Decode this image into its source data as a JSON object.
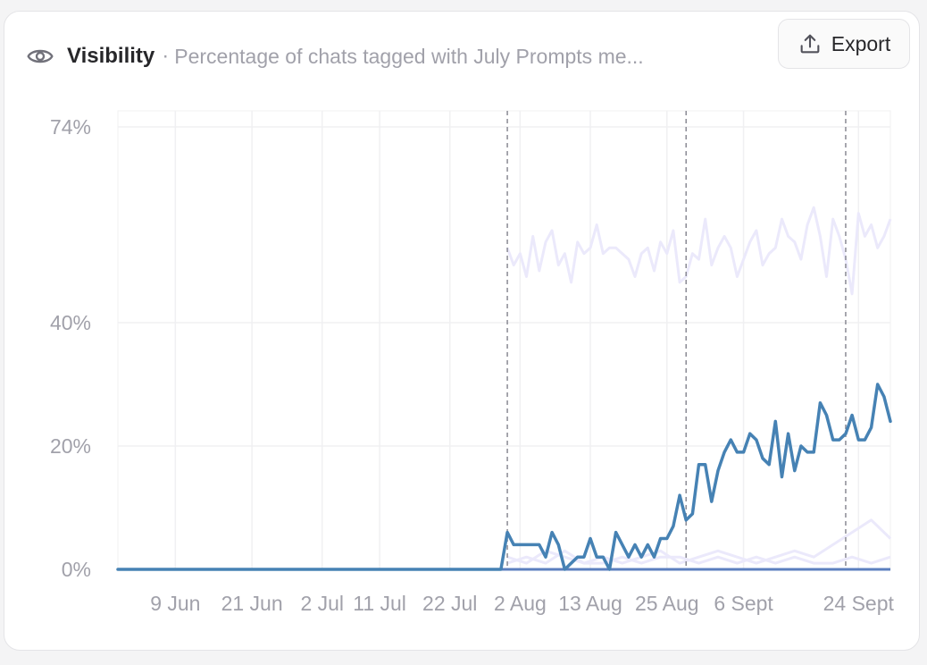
{
  "header": {
    "title": "Visibility",
    "separator": "·",
    "subtitle": "Percentage of chats tagged with July Prompts me...",
    "export_label": "Export"
  },
  "colors": {
    "main_series": "#4682b4",
    "faded_series": "#ebe9fb",
    "grid": "#f0f0f2",
    "marker_line": "#8a8a94"
  },
  "chart_data": {
    "type": "line",
    "y_ticks": [
      "0%",
      "20%",
      "40%",
      "74%"
    ],
    "y_tick_values": [
      0,
      20,
      40,
      74
    ],
    "ylim": [
      0,
      74
    ],
    "x_ticks": [
      "9 Jun",
      "21 Jun",
      "2 Jul",
      "11 Jul",
      "22 Jul",
      "2 Aug",
      "13 Aug",
      "25 Aug",
      "6 Sept",
      "24 Sept"
    ],
    "x_tick_days": [
      9,
      21,
      32,
      41,
      52,
      63,
      74,
      86,
      98,
      116
    ],
    "x_range_days": [
      0,
      121
    ],
    "marker_days": [
      61,
      89,
      114
    ],
    "grid": true,
    "series": [
      {
        "role": "main",
        "days": [
          0,
          60,
          61,
          62,
          64,
          66,
          67,
          68,
          69,
          70,
          72,
          73,
          74,
          75,
          76,
          77,
          78,
          79,
          80,
          81,
          82,
          83,
          84,
          85,
          86,
          87,
          88,
          89,
          90,
          91,
          92,
          93,
          94,
          95,
          96,
          97,
          98,
          99,
          100,
          101,
          102,
          103,
          104,
          105,
          106,
          107,
          108,
          109,
          110,
          111,
          112,
          113,
          114,
          115,
          116,
          117,
          118,
          119,
          120,
          121
        ],
        "values": [
          0,
          0,
          6,
          4,
          4,
          4,
          2,
          6,
          4,
          0,
          2,
          2,
          5,
          2,
          2,
          0,
          6,
          4,
          2,
          4,
          2,
          4,
          2,
          5,
          5,
          7,
          12,
          8,
          9,
          17,
          17,
          11,
          16,
          19,
          21,
          19,
          19,
          22,
          21,
          18,
          17,
          24,
          15,
          22,
          16,
          20,
          19,
          19,
          27,
          25,
          21,
          21,
          22,
          25,
          21,
          21,
          23,
          30,
          28,
          24
        ]
      },
      {
        "role": "faded",
        "days": [
          61,
          62,
          63,
          64,
          65,
          66,
          67,
          68,
          69,
          70,
          71,
          72,
          73,
          74,
          75,
          76,
          77,
          78,
          79,
          80,
          81,
          82,
          83,
          84,
          85,
          86,
          87,
          88,
          89,
          90,
          91,
          92,
          93,
          94,
          95,
          96,
          97,
          98,
          99,
          100,
          101,
          102,
          103,
          104,
          105,
          106,
          107,
          108,
          109,
          110,
          111,
          112,
          113,
          114,
          115,
          116,
          117,
          118,
          119,
          120,
          121
        ],
        "values": [
          53,
          50,
          52,
          48,
          55,
          49,
          54,
          56,
          50,
          52,
          47,
          54,
          52,
          53,
          57,
          52,
          53,
          53,
          52,
          51,
          48,
          52,
          53,
          49,
          54,
          52,
          56,
          47,
          48,
          52,
          51,
          58,
          50,
          53,
          55,
          53,
          48,
          51,
          54,
          56,
          50,
          52,
          53,
          58,
          55,
          54,
          51,
          57,
          60,
          55,
          48,
          58,
          55,
          51,
          45,
          59,
          55,
          57,
          53,
          55,
          58
        ]
      },
      {
        "role": "faded",
        "days": [
          61,
          64,
          67,
          70,
          73,
          76,
          79,
          82,
          85,
          88,
          91,
          94,
          97,
          100,
          103,
          106,
          109,
          112,
          115,
          118,
          121
        ],
        "values": [
          2,
          1,
          3,
          2,
          1,
          2,
          1,
          2,
          3,
          1,
          2,
          3,
          2,
          1,
          2,
          3,
          2,
          4,
          6,
          8,
          5
        ]
      },
      {
        "role": "faded",
        "days": [
          61,
          64,
          67,
          70,
          73,
          76,
          79,
          82,
          85,
          88,
          91,
          94,
          97,
          100,
          103,
          106,
          109,
          112,
          115,
          118,
          121
        ],
        "values": [
          1,
          2,
          1,
          3,
          1,
          1,
          2,
          1,
          2,
          2,
          1,
          2,
          1,
          2,
          1,
          2,
          1,
          1,
          2,
          1,
          2
        ]
      }
    ]
  }
}
